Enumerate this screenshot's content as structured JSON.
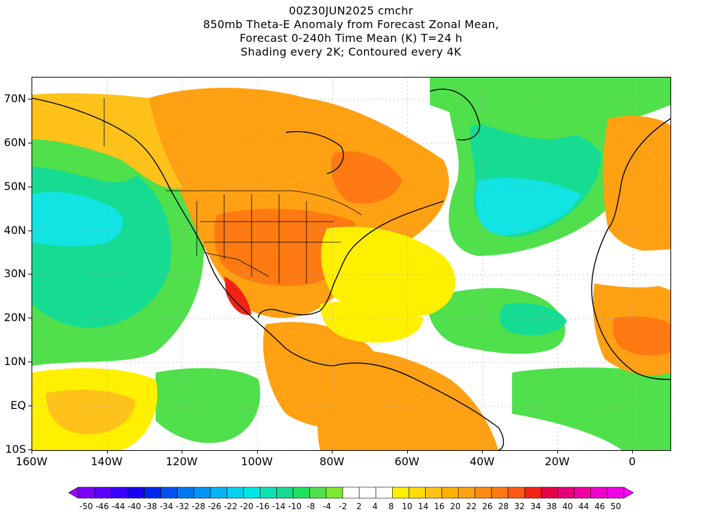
{
  "title": {
    "line1": "00Z30JUN2025 cmchr",
    "line2": "850mb Theta-E Anomaly from Forecast Zonal Mean,",
    "line3": "Forecast 0-240h Time Mean (K) T=24 h",
    "line4": "Shading every 2K; Contoured every 4K"
  },
  "map": {
    "lon_range": [
      -160,
      10
    ],
    "lat_range": [
      -10,
      75
    ],
    "lat_labels": [
      "70N",
      "60N",
      "50N",
      "40N",
      "30N",
      "20N",
      "10N",
      "EQ",
      "10S"
    ],
    "lon_labels": [
      "160W",
      "140W",
      "120W",
      "100W",
      "80W",
      "60W",
      "40W",
      "20W",
      "0"
    ],
    "colors": {
      "green": "#4fe04b",
      "teal": "#16dc93",
      "cyan": "#12e3e3",
      "yellow": "#fff000",
      "light_orange": "#ffc21a",
      "orange": "#ffa112",
      "dark_orange": "#ff7a12",
      "red": "#f22316",
      "white": "#ffffff"
    }
  },
  "colorbar": {
    "labels": [
      "-50",
      "-46",
      "-44",
      "-40",
      "-38",
      "-34",
      "-32",
      "-28",
      "-26",
      "-22",
      "-20",
      "-16",
      "-14",
      "-10",
      "-8",
      "-4",
      "-2",
      "2",
      "4",
      "8",
      "10",
      "14",
      "16",
      "20",
      "22",
      "26",
      "28",
      "32",
      "34",
      "38",
      "40",
      "44",
      "46",
      "50"
    ],
    "colors": [
      "#a000ff",
      "#7c00ff",
      "#5a00ff",
      "#3a00ff",
      "#1a00f5",
      "#0028f0",
      "#0050f0",
      "#0078f5",
      "#0096f5",
      "#00b4f5",
      "#00d2f0",
      "#00e6e6",
      "#10e0b4",
      "#16dc93",
      "#20e060",
      "#4fe04b",
      "#7ce830",
      "#ffffff",
      "#ffffff",
      "#ffffff",
      "#fff000",
      "#ffdc00",
      "#ffc21a",
      "#ffb000",
      "#ffa112",
      "#ff8c12",
      "#ff7a12",
      "#ff5a12",
      "#f22316",
      "#e6004a",
      "#e8007a",
      "#f000a0",
      "#f000c8",
      "#f000e6",
      "#ff00ff"
    ]
  }
}
